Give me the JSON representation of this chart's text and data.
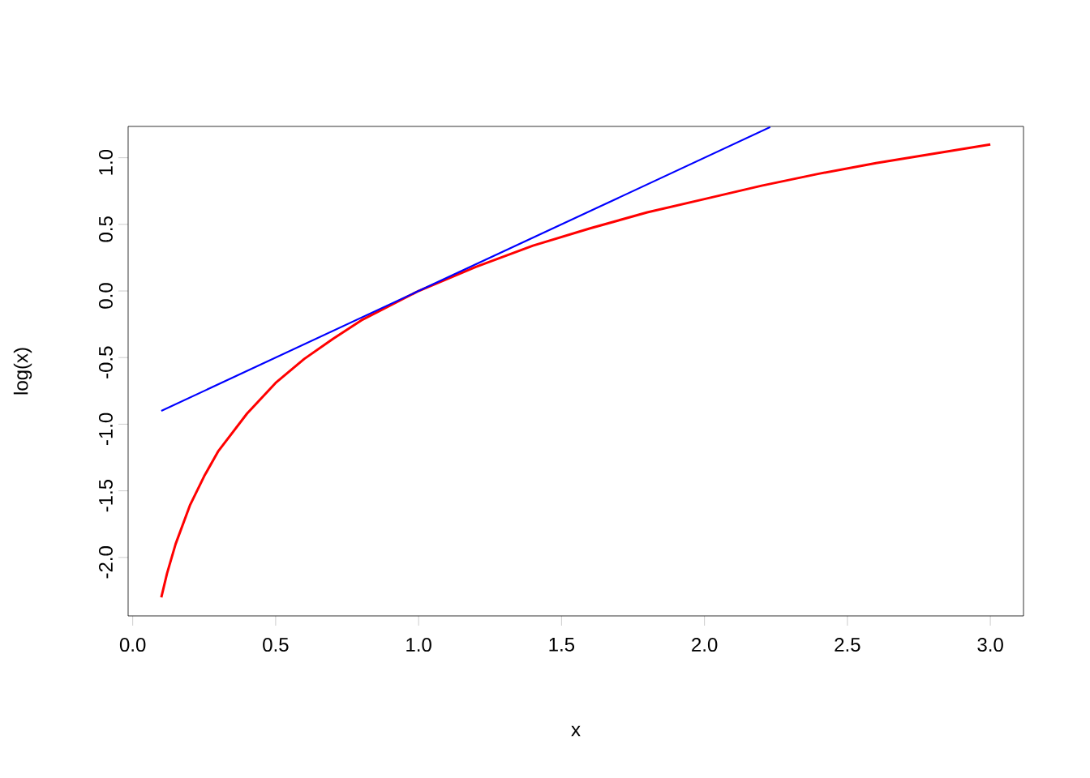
{
  "chart_data": {
    "type": "line",
    "xlabel": "x",
    "ylabel": "log(x)",
    "xlim": [
      -0.016,
      3.116
    ],
    "ylim": [
      -2.439,
      1.235
    ],
    "xticks": [
      {
        "value": 0,
        "label": "0.0"
      },
      {
        "value": 0.5,
        "label": "0.5"
      },
      {
        "value": 1,
        "label": "1.0"
      },
      {
        "value": 1.5,
        "label": "1.5"
      },
      {
        "value": 2,
        "label": "2.0"
      },
      {
        "value": 2.5,
        "label": "2.5"
      },
      {
        "value": 3,
        "label": "3.0"
      }
    ],
    "yticks": [
      {
        "value": -2,
        "label": "-2.0"
      },
      {
        "value": -1.5,
        "label": "-1.5"
      },
      {
        "value": -1,
        "label": "-1.0"
      },
      {
        "value": -0.5,
        "label": "-0.5"
      },
      {
        "value": 0,
        "label": "0.0"
      },
      {
        "value": 0.5,
        "label": "0.5"
      },
      {
        "value": 1,
        "label": "1.0"
      }
    ],
    "grid": false,
    "series": [
      {
        "color": "#ff0000",
        "x": [
          0.1,
          0.12,
          0.15,
          0.2,
          0.25,
          0.3,
          0.4,
          0.5,
          0.6,
          0.7,
          0.8,
          0.9,
          1.0,
          1.2,
          1.4,
          1.6,
          1.8,
          2.0,
          2.2,
          2.4,
          2.6,
          2.8,
          3.0
        ],
        "values": [
          -2.3,
          -2.12,
          -1.9,
          -1.61,
          -1.39,
          -1.2,
          -0.92,
          -0.69,
          -0.51,
          -0.36,
          -0.22,
          -0.11,
          0,
          0.18,
          0.34,
          0.47,
          0.59,
          0.69,
          0.79,
          0.88,
          0.96,
          1.03,
          1.1
        ]
      },
      {
        "color": "#0000ff",
        "x": [
          0.1,
          2.23
        ],
        "values": [
          -0.9,
          1.23
        ]
      }
    ]
  }
}
